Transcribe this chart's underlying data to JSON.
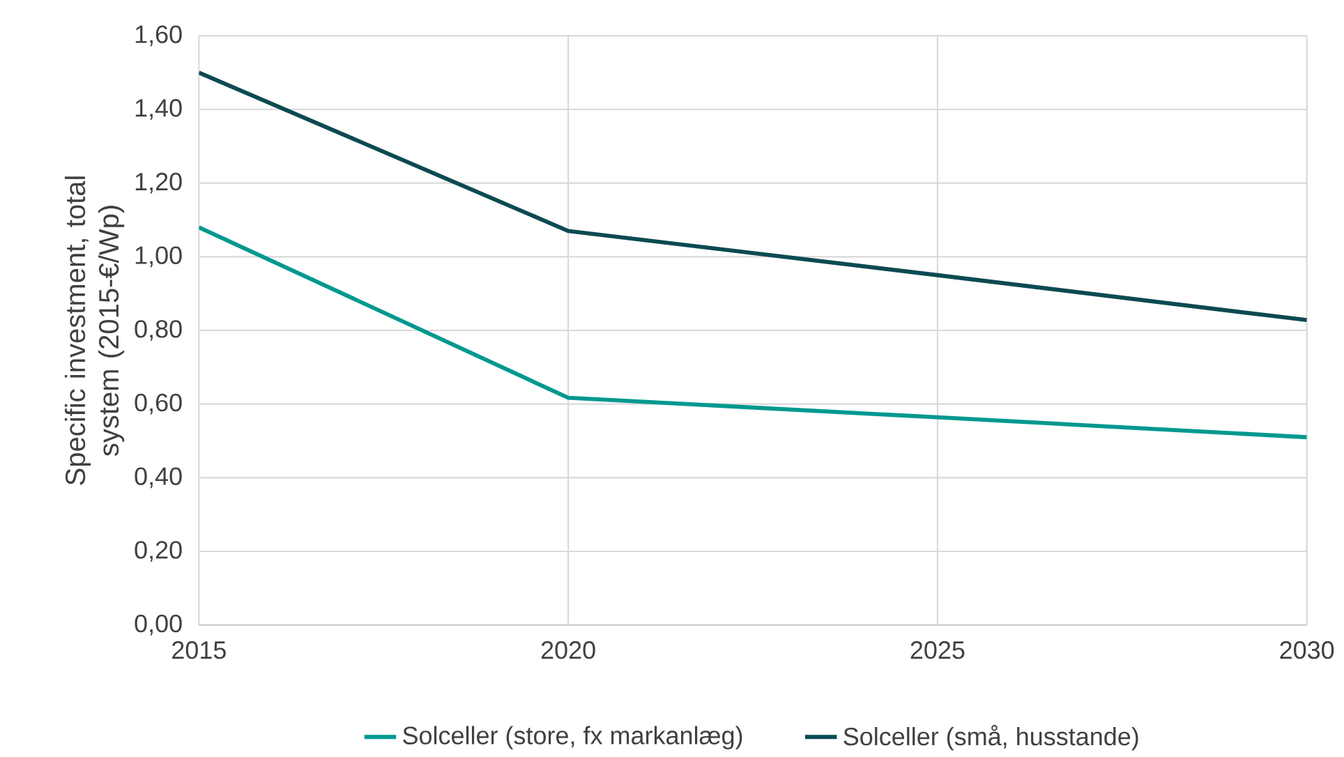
{
  "chart_data": {
    "type": "line",
    "ylabel": "Specific investment, total system (2015-€/Wp)",
    "x": [
      2015,
      2020,
      2025,
      2030
    ],
    "series": [
      {
        "name": "Solceller (store, fx markanlæg)",
        "color": "#00988f",
        "values": [
          1.08,
          0.617,
          0.564,
          0.51
        ]
      },
      {
        "name": "Solceller (små, husstande)",
        "color": "#0c4a52",
        "values": [
          1.5,
          1.07,
          0.95,
          0.828
        ]
      }
    ],
    "xlim": [
      2015,
      2030
    ],
    "xticks": [
      2015,
      2020,
      2025,
      2030
    ],
    "ylim": [
      0,
      1.6
    ],
    "yticks": [
      {
        "value": 0,
        "label": "0,00"
      },
      {
        "value": 0.2,
        "label": "0,20"
      },
      {
        "value": 0.4,
        "label": "0,40"
      },
      {
        "value": 0.6,
        "label": "0,60"
      },
      {
        "value": 0.8,
        "label": "0,80"
      },
      {
        "value": 1.0,
        "label": "1,00"
      },
      {
        "value": 1.2,
        "label": "1,20"
      },
      {
        "value": 1.4,
        "label": "1,40"
      },
      {
        "value": 1.6,
        "label": "1,60"
      }
    ],
    "grid": true,
    "legend": "bottom",
    "marker": "none",
    "line_style": "solid"
  }
}
